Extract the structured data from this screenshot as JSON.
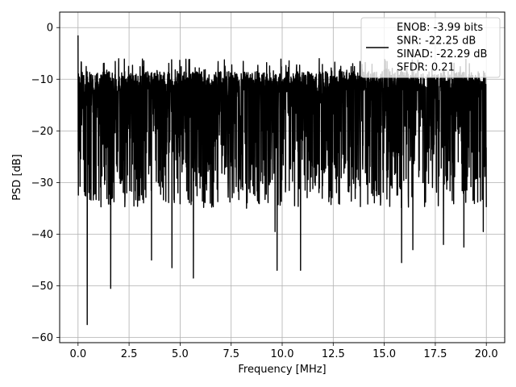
{
  "chart_data": {
    "type": "line",
    "xlabel": "Frequency [MHz]",
    "ylabel": "PSD [dB]",
    "xlim": [
      -0.9,
      20.9
    ],
    "ylim": [
      -61,
      3
    ],
    "xticks": [
      0.0,
      2.5,
      5.0,
      7.5,
      10.0,
      12.5,
      15.0,
      17.5,
      20.0
    ],
    "xtick_labels": [
      "0.0",
      "2.5",
      "5.0",
      "7.5",
      "10.0",
      "12.5",
      "15.0",
      "17.5",
      "20.0"
    ],
    "yticks": [
      0,
      -10,
      -20,
      -30,
      -40,
      -50,
      -60
    ],
    "ytick_labels": [
      "0",
      "−10",
      "−20",
      "−30",
      "−40",
      "−50",
      "−60"
    ],
    "grid": true,
    "legend_position": "top-right",
    "legend_lines": [
      "ENOB: -3.99 bits",
      "SNR: -22.25 dB",
      "SINAD: -22.29 dB",
      "SFDR: 0.21"
    ],
    "series": [
      {
        "color": "#000000",
        "x_range": [
          0,
          20
        ],
        "noise_band_upper_db": -10,
        "noise_band_lower_db": -27,
        "peak_max_db": -6,
        "start_spike_db": -1.5,
        "notches": [
          {
            "x": 0.45,
            "y": -57.5
          },
          {
            "x": 1.6,
            "y": -50.5
          },
          {
            "x": 3.6,
            "y": -45
          },
          {
            "x": 4.6,
            "y": -46.5
          },
          {
            "x": 5.65,
            "y": -48.5
          },
          {
            "x": 9.65,
            "y": -39.5
          },
          {
            "x": 9.75,
            "y": -47
          },
          {
            "x": 10.9,
            "y": -47
          },
          {
            "x": 15.85,
            "y": -45.5
          },
          {
            "x": 16.4,
            "y": -43
          },
          {
            "x": 17.9,
            "y": -42
          },
          {
            "x": 18.9,
            "y": -42.5
          },
          {
            "x": 19.85,
            "y": -39.5
          }
        ]
      }
    ]
  }
}
